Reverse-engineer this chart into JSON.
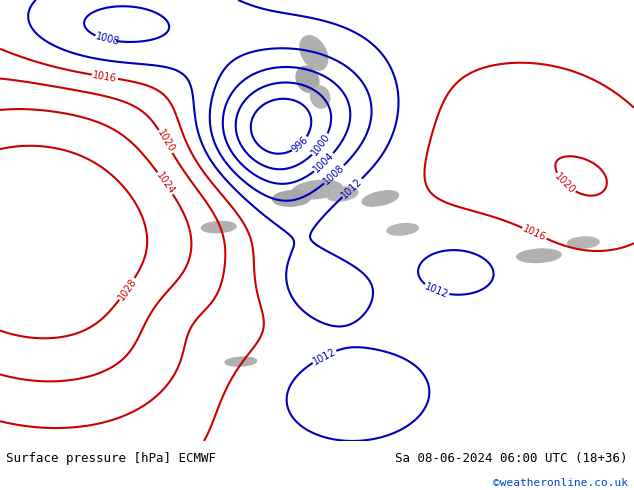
{
  "title_left": "Surface pressure [hPa] ECMWF",
  "title_right": "Sa 08-06-2024 06:00 UTC (18+36)",
  "watermark": "©weatheronline.co.uk",
  "land_color": "#b5d9a0",
  "sea_color": "#b5d9a0",
  "mountain_colors": [
    "#aaaaaa",
    "#999999",
    "#bbbbbb"
  ],
  "footer_bg": "#d8d8d8",
  "fig_width": 6.34,
  "fig_height": 4.9,
  "dpi": 100,
  "label_fontsize": 9,
  "watermark_color": "#0044cc",
  "watermark_fontsize": 8,
  "contour_lw": 1.5,
  "label_size": 7
}
